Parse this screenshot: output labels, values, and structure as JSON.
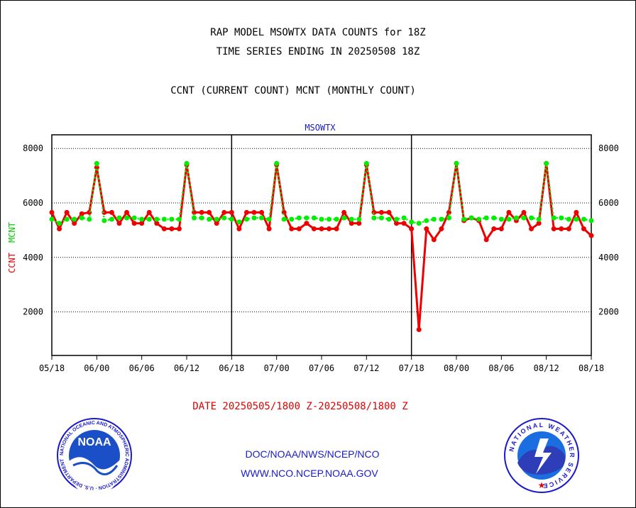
{
  "titles": {
    "line1": "RAP MODEL MSOWTX DATA COUNTS for 18Z",
    "line2": "TIME SERIES ENDING IN 20250508 18Z",
    "line3": "CCNT (CURRENT COUNT) MCNT (MONTHLY COUNT)"
  },
  "footer": {
    "date_range": "DATE 20250505/1800 Z-20250508/1800 Z",
    "org": "DOC/NOAA/NWS/NCEP/NCO",
    "url": "WWW.NCO.NCEP.NOAA.GOV"
  },
  "logos": {
    "noaa_text": "NOAA",
    "noaa_ring": "NATIONAL OCEANIC AND ATMOSPHERIC ADMINISTRATION · U.S. DEPARTMENT OF COMMERCE",
    "nws_ring": "NATIONAL WEATHER SERVICE"
  },
  "chart_data": {
    "type": "line",
    "title": "MSOWTX",
    "ylabel_left": [
      "CCNT",
      "MCNT"
    ],
    "ylim": [
      400,
      8500
    ],
    "yticks": [
      2000,
      4000,
      6000,
      8000
    ],
    "xlim": [
      0,
      72
    ],
    "xtick_labels": [
      "05/18",
      "06/00",
      "06/06",
      "06/12",
      "06/18",
      "07/00",
      "07/06",
      "07/12",
      "07/18",
      "08/00",
      "08/06",
      "08/12",
      "08/18"
    ],
    "xtick_hours": [
      0,
      6,
      12,
      18,
      24,
      30,
      36,
      42,
      48,
      54,
      60,
      66,
      72
    ],
    "day_boundaries": [
      24,
      48
    ],
    "grid": "horizontal dotted",
    "colors": {
      "ccnt": "#ee0000",
      "mcnt": "#00ee00",
      "title": "#1a1acc"
    },
    "series": [
      {
        "name": "CCNT",
        "x": [
          0,
          1,
          2,
          3,
          4,
          5,
          6,
          7,
          8,
          9,
          10,
          11,
          12,
          13,
          14,
          15,
          16,
          17,
          18,
          19,
          20,
          21,
          22,
          23,
          24,
          25,
          26,
          27,
          28,
          29,
          30,
          31,
          32,
          33,
          34,
          35,
          36,
          37,
          38,
          39,
          40,
          41,
          42,
          43,
          44,
          45,
          46,
          47,
          48,
          49,
          50,
          51,
          52,
          53,
          54,
          55,
          56,
          57,
          58,
          59,
          60,
          61,
          62,
          63,
          64,
          65,
          66,
          67,
          68,
          69,
          70,
          71,
          72
        ],
        "values": [
          5650,
          5050,
          5650,
          5250,
          5600,
          5650,
          7300,
          5650,
          5650,
          5250,
          5650,
          5250,
          5250,
          5650,
          5250,
          5050,
          5050,
          5050,
          7400,
          5650,
          5650,
          5650,
          5250,
          5650,
          5650,
          5050,
          5650,
          5650,
          5650,
          5050,
          7400,
          5650,
          5050,
          5050,
          5250,
          5050,
          5050,
          5050,
          5050,
          5650,
          5250,
          5250,
          7400,
          5650,
          5650,
          5650,
          5250,
          5250,
          5050,
          1350,
          5050,
          4650,
          5050,
          5650,
          7450,
          5350,
          5450,
          5350,
          4650,
          5050,
          5050,
          5650,
          5350,
          5650,
          5050,
          5250,
          7450,
          5050,
          5050,
          5050,
          5650,
          5050,
          4800
        ]
      },
      {
        "name": "MCNT",
        "x": [
          0,
          1,
          2,
          3,
          4,
          5,
          6,
          7,
          8,
          9,
          10,
          11,
          12,
          13,
          14,
          15,
          16,
          17,
          18,
          19,
          20,
          21,
          22,
          23,
          24,
          25,
          26,
          27,
          28,
          29,
          30,
          31,
          32,
          33,
          34,
          35,
          36,
          37,
          38,
          39,
          40,
          41,
          42,
          43,
          44,
          45,
          46,
          47,
          48,
          49,
          50,
          51,
          52,
          53,
          54,
          55,
          56,
          57,
          58,
          59,
          60,
          61,
          62,
          63,
          64,
          65,
          66,
          67,
          68,
          69,
          70,
          71,
          72
        ],
        "values": [
          5400,
          5250,
          5400,
          5400,
          5450,
          5400,
          7450,
          5350,
          5400,
          5450,
          5450,
          5450,
          5400,
          5400,
          5400,
          5400,
          5400,
          5400,
          7450,
          5450,
          5450,
          5400,
          5400,
          5450,
          5400,
          5300,
          5400,
          5450,
          5450,
          5400,
          7450,
          5400,
          5400,
          5450,
          5450,
          5450,
          5400,
          5400,
          5400,
          5450,
          5400,
          5400,
          7450,
          5450,
          5450,
          5400,
          5400,
          5450,
          5300,
          5250,
          5350,
          5400,
          5400,
          5450,
          7450,
          5400,
          5450,
          5400,
          5450,
          5450,
          5400,
          5400,
          5450,
          5450,
          5450,
          5400,
          7450,
          5450,
          5450,
          5400,
          5400,
          5400,
          5350
        ]
      }
    ]
  }
}
